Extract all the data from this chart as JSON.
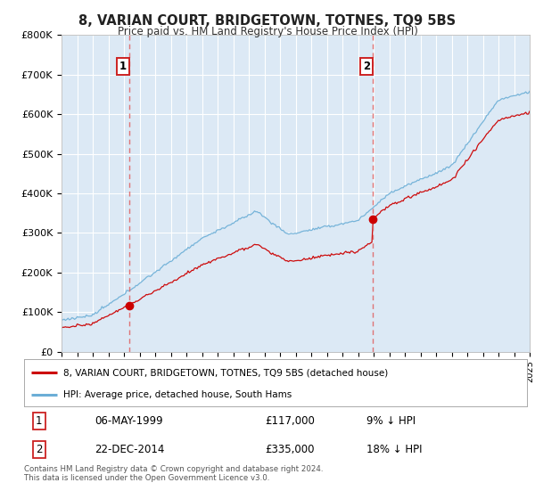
{
  "title": "8, VARIAN COURT, BRIDGETOWN, TOTNES, TQ9 5BS",
  "subtitle": "Price paid vs. HM Land Registry's House Price Index (HPI)",
  "ylabel_ticks": [
    "£0",
    "£100K",
    "£200K",
    "£300K",
    "£400K",
    "£500K",
    "£600K",
    "£700K",
    "£800K"
  ],
  "ylim": [
    0,
    800000
  ],
  "xlim_start": 1995.0,
  "xlim_end": 2025.0,
  "sale1_date": 1999.35,
  "sale1_price": 117000,
  "sale2_date": 2014.97,
  "sale2_price": 335000,
  "red_line_color": "#cc0000",
  "blue_line_color": "#6baed6",
  "blue_fill_color": "#dce9f5",
  "vline_color": "#e06060",
  "legend_label_red": "8, VARIAN COURT, BRIDGETOWN, TOTNES, TQ9 5BS (detached house)",
  "legend_label_blue": "HPI: Average price, detached house, South Hams",
  "table_row1": [
    "1",
    "06-MAY-1999",
    "£117,000",
    "9% ↓ HPI"
  ],
  "table_row2": [
    "2",
    "22-DEC-2014",
    "£335,000",
    "18% ↓ HPI"
  ],
  "footnote": "Contains HM Land Registry data © Crown copyright and database right 2024.\nThis data is licensed under the Open Government Licence v3.0.",
  "background_color": "#ffffff"
}
